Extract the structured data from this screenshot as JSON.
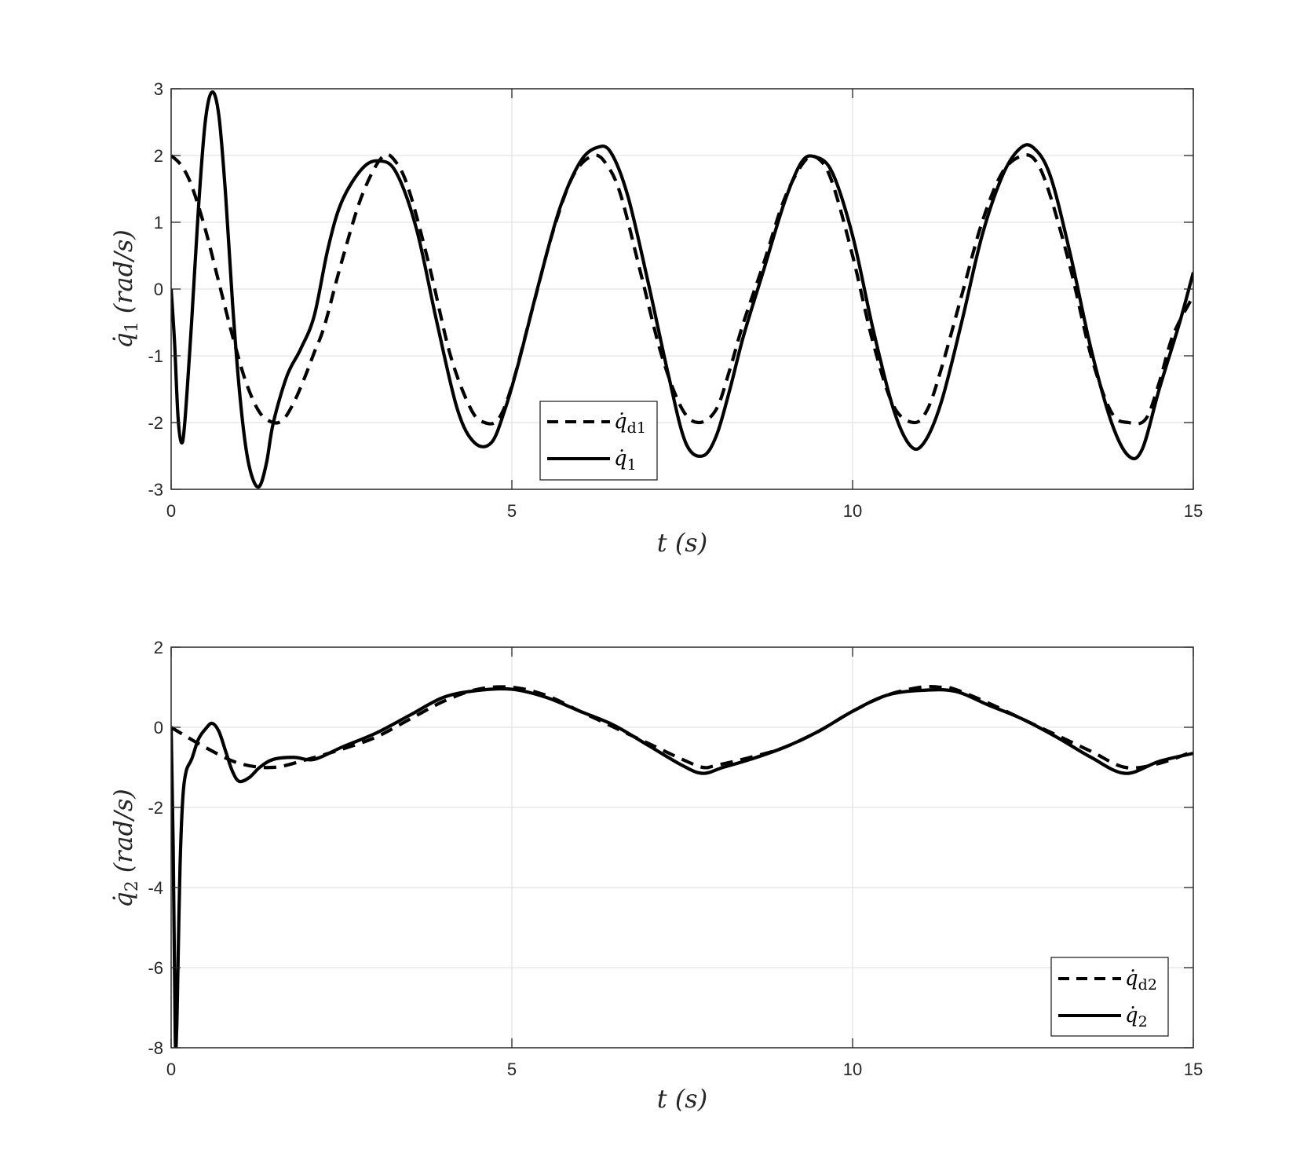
{
  "chart_data": [
    {
      "type": "line",
      "x_label": "t (s)",
      "y_label": "q̇1 (rad/s)",
      "xlim": [
        0,
        15
      ],
      "ylim": [
        -3,
        3
      ],
      "xticks": [
        0,
        5,
        10,
        15
      ],
      "yticks": [
        -3,
        -2,
        -1,
        0,
        1,
        2,
        3
      ],
      "x_tick_labels": [
        "0",
        "5",
        "10",
        "15"
      ],
      "y_tick_labels": [
        "-3",
        "-2",
        "-1",
        "0",
        "1",
        "2",
        "3"
      ],
      "grid": true,
      "legend_position": "bottom-center",
      "series": [
        {
          "name": "q̇d1",
          "style": "dashed",
          "color": "#000000",
          "x": [
            0,
            0.15,
            0.3,
            0.5,
            0.7,
            0.9,
            1.1,
            1.3,
            1.5,
            1.65,
            1.8,
            1.95,
            2.1,
            2.25,
            2.5,
            2.8,
            3.1,
            3.3,
            3.5,
            3.8,
            4.1,
            4.4,
            4.6,
            4.8,
            5.0,
            5.3,
            5.6,
            5.9,
            6.2,
            6.4,
            6.6,
            6.9,
            7.2,
            7.5,
            7.75,
            8.0,
            8.2,
            8.4,
            8.7,
            9.0,
            9.3,
            9.5,
            9.7,
            10.0,
            10.3,
            10.6,
            10.9,
            11.1,
            11.3,
            11.6,
            11.9,
            12.2,
            12.5,
            12.7,
            12.9,
            13.2,
            13.5,
            13.8,
            14.05,
            14.3,
            14.5,
            14.7,
            15.0
          ],
          "y": [
            2.0,
            1.85,
            1.55,
            0.9,
            0.1,
            -0.7,
            -1.4,
            -1.85,
            -2.0,
            -1.95,
            -1.7,
            -1.35,
            -0.95,
            -0.55,
            0.4,
            1.4,
            1.98,
            1.9,
            1.45,
            0.3,
            -1.0,
            -1.8,
            -2.0,
            -1.95,
            -1.45,
            -0.3,
            0.85,
            1.7,
            2.0,
            1.85,
            1.4,
            0.2,
            -1.0,
            -1.8,
            -2.0,
            -1.8,
            -1.2,
            -0.5,
            0.4,
            1.35,
            1.92,
            1.95,
            1.6,
            0.5,
            -0.8,
            -1.75,
            -2.0,
            -1.8,
            -1.2,
            -0.1,
            1.0,
            1.75,
            2.0,
            1.9,
            1.4,
            0.3,
            -1.0,
            -1.85,
            -2.0,
            -1.95,
            -1.4,
            -0.7,
            -0.1
          ]
        },
        {
          "name": "q̇1",
          "style": "solid",
          "color": "#000000",
          "x": [
            0,
            0.05,
            0.1,
            0.15,
            0.2,
            0.3,
            0.4,
            0.5,
            0.6,
            0.7,
            0.8,
            0.9,
            1.0,
            1.1,
            1.2,
            1.3,
            1.4,
            1.5,
            1.7,
            1.9,
            2.1,
            2.3,
            2.5,
            2.8,
            3.05,
            3.3,
            3.6,
            3.9,
            4.2,
            4.45,
            4.7,
            4.9,
            5.1,
            5.4,
            5.7,
            6.0,
            6.25,
            6.45,
            6.7,
            7.0,
            7.3,
            7.55,
            7.8,
            8.0,
            8.2,
            8.4,
            8.7,
            9.0,
            9.25,
            9.45,
            9.7,
            10.0,
            10.3,
            10.6,
            10.85,
            11.05,
            11.3,
            11.6,
            11.9,
            12.2,
            12.45,
            12.65,
            12.9,
            13.2,
            13.5,
            13.8,
            14.05,
            14.25,
            14.5,
            14.8,
            15.0
          ],
          "y": [
            0.0,
            -0.8,
            -1.9,
            -2.3,
            -2.0,
            -0.5,
            1.2,
            2.5,
            2.95,
            2.6,
            1.4,
            -0.2,
            -1.5,
            -2.4,
            -2.85,
            -2.95,
            -2.6,
            -2.0,
            -1.3,
            -0.9,
            -0.4,
            0.6,
            1.3,
            1.8,
            1.92,
            1.75,
            0.9,
            -0.5,
            -1.8,
            -2.3,
            -2.3,
            -1.8,
            -1.1,
            0.1,
            1.2,
            1.9,
            2.12,
            2.05,
            1.4,
            0.1,
            -1.3,
            -2.3,
            -2.5,
            -2.2,
            -1.5,
            -0.7,
            0.3,
            1.3,
            1.9,
            1.98,
            1.75,
            0.8,
            -0.6,
            -1.8,
            -2.35,
            -2.3,
            -1.7,
            -0.5,
            0.8,
            1.7,
            2.1,
            2.12,
            1.7,
            0.5,
            -0.9,
            -2.0,
            -2.5,
            -2.4,
            -1.5,
            -0.5,
            0.25
          ]
        }
      ]
    },
    {
      "type": "line",
      "x_label": "t (s)",
      "y_label": "q̇2 (rad/s)",
      "xlim": [
        0,
        15
      ],
      "ylim": [
        -8,
        2
      ],
      "xticks": [
        0,
        5,
        10,
        15
      ],
      "yticks": [
        -8,
        -6,
        -4,
        -2,
        0,
        2
      ],
      "x_tick_labels": [
        "0",
        "5",
        "10",
        "15"
      ],
      "y_tick_labels": [
        "-8",
        "-6",
        "-4",
        "-2",
        "0",
        "2"
      ],
      "grid": true,
      "legend_position": "bottom-right",
      "series": [
        {
          "name": "q̇d2",
          "style": "dashed",
          "color": "#000000",
          "x": [
            0,
            0.5,
            1.0,
            1.5,
            2.0,
            2.5,
            3.0,
            3.5,
            4.0,
            4.5,
            5.0,
            5.5,
            6.0,
            6.5,
            7.0,
            7.5,
            7.8,
            8.0,
            8.5,
            9.0,
            9.5,
            10.0,
            10.5,
            11.0,
            11.3,
            11.5,
            12.0,
            12.5,
            13.0,
            13.5,
            14.0,
            14.5,
            15.0
          ],
          "y": [
            0.0,
            -0.5,
            -0.9,
            -1.0,
            -0.8,
            -0.55,
            -0.25,
            0.2,
            0.65,
            0.95,
            1.0,
            0.8,
            0.4,
            0.0,
            -0.4,
            -0.8,
            -1.0,
            -0.95,
            -0.75,
            -0.5,
            -0.1,
            0.4,
            0.8,
            1.0,
            1.0,
            0.95,
            0.6,
            0.2,
            -0.2,
            -0.6,
            -1.0,
            -0.9,
            -0.6
          ]
        },
        {
          "name": "q̇2",
          "style": "solid",
          "color": "#000000",
          "x": [
            0,
            0.03,
            0.06,
            0.08,
            0.1,
            0.13,
            0.17,
            0.22,
            0.3,
            0.4,
            0.5,
            0.6,
            0.7,
            0.8,
            0.9,
            1.0,
            1.15,
            1.3,
            1.5,
            1.8,
            2.1,
            2.5,
            3.0,
            3.5,
            4.0,
            4.5,
            5.0,
            5.5,
            6.0,
            6.5,
            7.0,
            7.5,
            7.8,
            8.1,
            8.5,
            9.0,
            9.5,
            10.0,
            10.5,
            11.0,
            11.5,
            12.0,
            12.5,
            13.0,
            13.5,
            14.0,
            14.5,
            15.0
          ],
          "y": [
            0.0,
            -3.0,
            -7.7,
            -7.6,
            -6.0,
            -3.5,
            -1.8,
            -1.1,
            -0.8,
            -0.3,
            -0.05,
            0.1,
            -0.1,
            -0.6,
            -1.1,
            -1.35,
            -1.25,
            -1.0,
            -0.8,
            -0.75,
            -0.8,
            -0.5,
            -0.15,
            0.3,
            0.75,
            0.92,
            0.95,
            0.75,
            0.4,
            0.05,
            -0.45,
            -0.95,
            -1.15,
            -1.0,
            -0.8,
            -0.5,
            -0.1,
            0.4,
            0.8,
            0.92,
            0.9,
            0.55,
            0.2,
            -0.25,
            -0.75,
            -1.15,
            -0.85,
            -0.65
          ]
        }
      ]
    }
  ],
  "panels": [
    {
      "x_label": {
        "var": "t",
        "rest": "(s)"
      },
      "y_label": {
        "base": "q̇",
        "sub": "1",
        "rest": "(rad/s)"
      },
      "legend": [
        {
          "base": "q̇",
          "sub": "d1"
        },
        {
          "base": "q̇",
          "sub": "1"
        }
      ]
    },
    {
      "x_label": {
        "var": "t",
        "rest": "(s)"
      },
      "y_label": {
        "base": "q̇",
        "sub": "2",
        "rest": "(rad/s)"
      },
      "legend": [
        {
          "base": "q̇",
          "sub": "d2"
        },
        {
          "base": "q̇",
          "sub": "2"
        }
      ]
    }
  ]
}
